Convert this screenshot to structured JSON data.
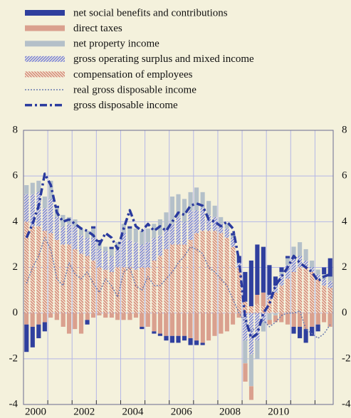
{
  "chart_data": {
    "type": "stacked-bar-line",
    "x": [
      2000.125,
      2000.375,
      2000.625,
      2000.875,
      2001.125,
      2001.375,
      2001.625,
      2001.875,
      2002.125,
      2002.375,
      2002.625,
      2002.875,
      2003.125,
      2003.375,
      2003.625,
      2003.875,
      2004.125,
      2004.375,
      2004.625,
      2004.875,
      2005.125,
      2005.375,
      2005.625,
      2005.875,
      2006.125,
      2006.375,
      2006.625,
      2006.875,
      2007.125,
      2007.375,
      2007.625,
      2007.875,
      2008.125,
      2008.375,
      2008.625,
      2008.875,
      2009.125,
      2009.375,
      2009.625,
      2009.875,
      2010.125,
      2010.375,
      2010.625,
      2010.875,
      2011.125,
      2011.375,
      2011.625,
      2011.875,
      2012.125,
      2012.375,
      2012.625
    ],
    "xlim": [
      2000,
      2012.75
    ],
    "xticks": [
      {
        "value": 2000,
        "label": "2000"
      },
      {
        "value": 2001,
        "label": null
      },
      {
        "value": 2002,
        "label": "2002"
      },
      {
        "value": 2003,
        "label": null
      },
      {
        "value": 2004,
        "label": "2004"
      },
      {
        "value": 2005,
        "label": null
      },
      {
        "value": 2006,
        "label": "2006"
      },
      {
        "value": 2007,
        "label": null
      },
      {
        "value": 2008,
        "label": "2008"
      },
      {
        "value": 2009,
        "label": null
      },
      {
        "value": 2010,
        "label": "2010"
      },
      {
        "value": 2011,
        "label": null
      },
      {
        "value": 2012,
        "label": null
      }
    ],
    "ylim": [
      -4,
      8
    ],
    "yticks": [
      -4,
      -2,
      0,
      2,
      4,
      6,
      8
    ],
    "grid": true,
    "series": [
      {
        "name": "net social benefits and contributions",
        "color": "#2f3f9e",
        "pattern": "solid",
        "kind": "bar",
        "values": [
          -1.2,
          -0.9,
          -0.6,
          -0.4,
          0.0,
          0.1,
          0.0,
          0.0,
          0.0,
          0.0,
          -0.2,
          0.1,
          0.1,
          0.0,
          0.1,
          0.0,
          0.0,
          0.1,
          0.0,
          -0.1,
          0.0,
          -0.1,
          -0.1,
          -0.2,
          -0.3,
          -0.3,
          -0.2,
          -0.3,
          -0.2,
          -0.1,
          0.0,
          0.0,
          0.0,
          0.0,
          0.1,
          0.3,
          1.3,
          2.0,
          2.2,
          2.0,
          1.3,
          0.4,
          0.2,
          0.1,
          -0.3,
          -0.5,
          -0.6,
          -0.4,
          -0.3,
          0.3,
          0.8
        ]
      },
      {
        "name": "direct taxes",
        "color": "#c8705e",
        "pattern": "vertical",
        "kind": "bar",
        "values": [
          -0.5,
          -0.6,
          -0.5,
          -0.4,
          -0.2,
          -0.3,
          -0.6,
          -0.9,
          -0.7,
          -0.9,
          -0.3,
          -0.2,
          -0.1,
          -0.2,
          -0.2,
          -0.3,
          -0.3,
          -0.3,
          -0.2,
          -0.6,
          -0.6,
          -0.8,
          -0.9,
          -1.0,
          -1.0,
          -1.0,
          -1.0,
          -1.1,
          -1.2,
          -1.3,
          -1.2,
          -1.0,
          -0.9,
          -0.8,
          -0.5,
          -0.2,
          -0.8,
          -0.6,
          0.4,
          0.6,
          -0.2,
          -0.3,
          -0.4,
          -0.5,
          -0.6,
          -0.6,
          -0.7,
          -0.6,
          -0.5,
          -0.4,
          -0.6
        ]
      },
      {
        "name": "net property income",
        "color": "#8fa8c0",
        "pattern": "horizontal",
        "kind": "bar",
        "values": [
          0.4,
          0.5,
          0.5,
          0.5,
          0.8,
          0.4,
          0.5,
          0.3,
          0.3,
          0.3,
          0.3,
          0.4,
          0.3,
          0.2,
          0.3,
          0.3,
          0.4,
          0.5,
          0.6,
          0.6,
          0.6,
          0.6,
          0.7,
          0.7,
          1.2,
          1.0,
          1.0,
          0.8,
          1.0,
          0.7,
          0.6,
          0.5,
          0.3,
          0.2,
          0.1,
          0.0,
          -1.0,
          -1.4,
          -0.8,
          -0.4,
          -0.3,
          -0.1,
          0.1,
          0.3,
          0.5,
          0.6,
          0.5,
          0.3,
          0.2,
          0.2,
          0.2
        ]
      },
      {
        "name": "gross operating surplus and mixed income",
        "color": "#6f7fd8",
        "pattern": "diag-up",
        "kind": "bar",
        "values": [
          1.2,
          1.4,
          1.5,
          1.0,
          1.5,
          1.0,
          0.8,
          0.9,
          1.0,
          0.8,
          0.8,
          1.0,
          0.8,
          0.8,
          0.7,
          0.8,
          1.5,
          1.2,
          1.2,
          1.0,
          1.1,
          1.0,
          0.9,
          0.9,
          0.9,
          1.2,
          1.0,
          1.3,
          1.0,
          1.0,
          0.7,
          0.6,
          0.4,
          0.4,
          0.4,
          0.2,
          -1.2,
          -1.8,
          -1.2,
          -0.4,
          0.2,
          0.3,
          0.5,
          0.6,
          0.6,
          0.5,
          0.3,
          0.2,
          0.2,
          0.3,
          0.3
        ]
      },
      {
        "name": "compensation of employees",
        "color": "#d2826e",
        "pattern": "diag-down",
        "kind": "bar",
        "values": [
          4.0,
          3.8,
          3.8,
          3.6,
          3.5,
          3.2,
          3.0,
          3.0,
          2.8,
          2.6,
          2.5,
          2.3,
          2.0,
          1.9,
          1.8,
          2.0,
          2.0,
          2.0,
          1.9,
          2.0,
          2.0,
          2.3,
          2.5,
          2.8,
          3.0,
          3.0,
          3.0,
          3.2,
          3.5,
          3.6,
          3.6,
          3.6,
          3.5,
          3.3,
          2.9,
          2.0,
          0.5,
          0.3,
          0.4,
          0.3,
          0.6,
          0.9,
          1.2,
          1.5,
          1.8,
          2.0,
          2.0,
          1.8,
          1.5,
          1.2,
          1.1
        ]
      },
      {
        "name": "real gross disposable income",
        "color": "#6a7ab0",
        "dash": "2 2",
        "width": 1.5,
        "kind": "line",
        "values": [
          1.3,
          2.0,
          2.5,
          3.3,
          2.8,
          1.5,
          1.2,
          2.2,
          1.7,
          1.5,
          1.8,
          1.3,
          0.9,
          1.5,
          1.2,
          0.7,
          1.8,
          2.0,
          1.2,
          1.0,
          1.6,
          1.2,
          1.2,
          1.5,
          1.8,
          2.2,
          2.5,
          2.9,
          2.8,
          2.6,
          2.0,
          1.8,
          1.5,
          1.2,
          0.6,
          0.0,
          -0.4,
          -0.8,
          -0.6,
          -0.3,
          -0.6,
          -0.4,
          -0.1,
          0.0,
          0.0,
          0.1,
          -0.7,
          -0.9,
          -1.1,
          -0.9,
          -0.5
        ]
      },
      {
        "name": "gross disposable income",
        "color": "#2a3a9e",
        "dash": "10 4 3 4",
        "width": 3.5,
        "kind": "line",
        "values": [
          3.3,
          3.9,
          4.7,
          6.1,
          5.6,
          4.4,
          4.0,
          4.1,
          3.9,
          3.7,
          3.6,
          3.4,
          3.0,
          3.5,
          3.3,
          2.8,
          3.7,
          4.5,
          3.8,
          3.6,
          3.9,
          3.6,
          3.8,
          3.6,
          4.0,
          4.4,
          4.3,
          4.7,
          4.8,
          4.7,
          4.1,
          4.0,
          3.8,
          4.0,
          3.7,
          2.3,
          -0.2,
          -1.1,
          -0.9,
          0.0,
          0.4,
          1.2,
          1.6,
          2.0,
          2.5,
          2.2,
          2.0,
          1.8,
          1.4,
          1.6,
          1.7
        ]
      }
    ]
  }
}
